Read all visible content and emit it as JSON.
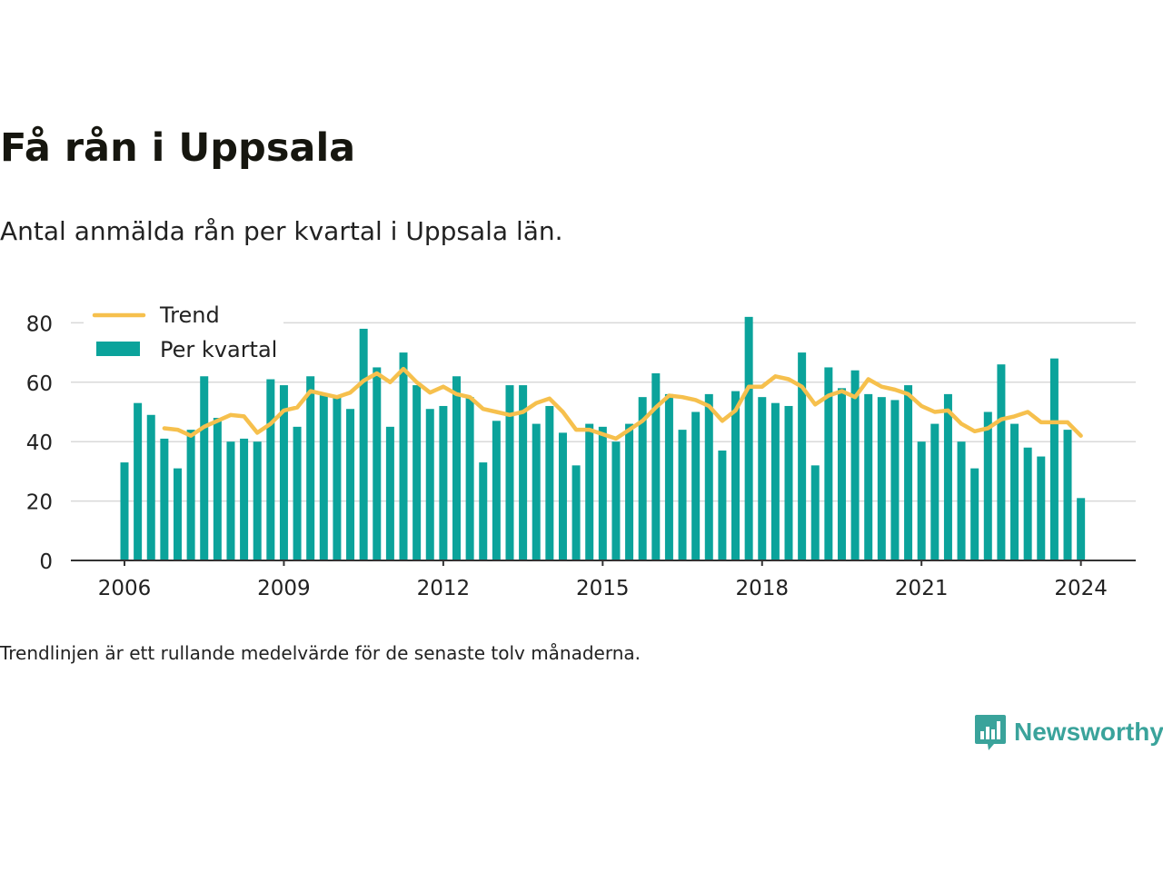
{
  "header": {
    "title": "Få rån i Uppsala",
    "subtitle": "Antal anmälda rån per kvartal i Uppsala län."
  },
  "footnote": "Trendlinjen är ett rullande medelvärde för de senaste tolv månaderna.",
  "brand": {
    "name": "Newsworthy",
    "icon": "newsworthy-logo-icon",
    "color": "#3aa39b"
  },
  "chart_data": {
    "type": "bar",
    "y_ticks": [
      "0",
      "20",
      "40",
      "60",
      "80"
    ],
    "x_ticks": [
      "2006",
      "2009",
      "2012",
      "2015",
      "2018",
      "2021",
      "2024"
    ],
    "ylim": [
      0,
      85
    ],
    "grid": true,
    "legend_position": "top-left",
    "colors": {
      "bars": "#0ba39b",
      "trend": "#f6c04d",
      "grid": "#d9d9d9",
      "axis": "#333333"
    },
    "x_start": "2006-Q1",
    "series": [
      {
        "name": "Per kvartal",
        "type": "bar",
        "values": [
          33,
          53,
          49,
          41,
          31,
          44,
          62,
          48,
          40,
          41,
          40,
          61,
          59,
          45,
          62,
          56,
          55,
          51,
          78,
          65,
          45,
          70,
          59,
          51,
          52,
          62,
          55,
          33,
          47,
          59,
          59,
          46,
          52,
          43,
          32,
          46,
          45,
          40,
          46,
          55,
          63,
          56,
          44,
          50,
          56,
          37,
          57,
          82,
          55,
          53,
          52,
          70,
          32,
          65,
          58,
          64,
          56,
          55,
          54,
          59,
          40,
          46,
          56,
          40,
          31,
          50,
          66,
          46,
          38,
          35,
          68,
          44,
          21
        ]
      },
      {
        "name": "Trend",
        "type": "line",
        "values": [
          null,
          null,
          null,
          44.5,
          44,
          42,
          45,
          47,
          49,
          48.5,
          43,
          46,
          50.5,
          51.5,
          57,
          56,
          55,
          56.5,
          60.5,
          63,
          60,
          64.5,
          60,
          56.5,
          58.5,
          56,
          55,
          51,
          50,
          49,
          50,
          53,
          54.5,
          50,
          44,
          44,
          42.5,
          41,
          44,
          47,
          51.5,
          55.5,
          55,
          54,
          52,
          47,
          50.5,
          58.5,
          58.5,
          62,
          61,
          58.5,
          52.5,
          55.5,
          57,
          55,
          61,
          58.5,
          57.5,
          56,
          52,
          50,
          50.5,
          46,
          43.5,
          44.5,
          47.5,
          48.5,
          50,
          46.5,
          46.5,
          46.5,
          42
        ]
      }
    ]
  }
}
